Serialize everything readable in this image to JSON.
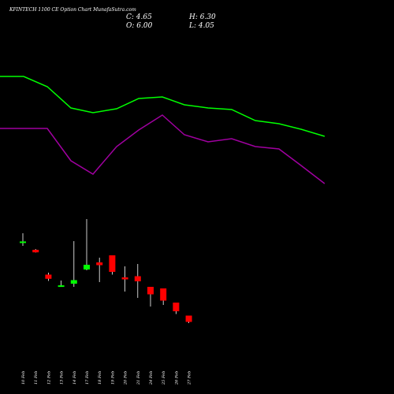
{
  "title": "KFINTECH 1100 CE Option Chart MunafaSutra.com",
  "ohlc": {
    "c": "C: 4.65",
    "h": "H: 6.30",
    "o": "O: 6.00",
    "l": "L: 4.05"
  },
  "chart_data": {
    "type": "candlestick",
    "colors": {
      "up": "#00ff00",
      "down": "#ff0000",
      "line_upper": "#00ff00",
      "line_lower": "#a000a0",
      "wick": "#ffffff",
      "background": "#000000"
    },
    "categories": [
      "10 Feb",
      "11 Feb",
      "12 Feb",
      "13 Feb",
      "14 Feb",
      "17 Feb",
      "18 Feb",
      "19 Feb",
      "20 Feb",
      "21 Feb",
      "24 Feb",
      "25 Feb",
      "26 Feb",
      "27 Feb"
    ],
    "candles": [
      {
        "open": 49.7,
        "close": 51.6,
        "high": 62.0,
        "low": 46.0
      },
      {
        "open": 41.0,
        "close": 37.8,
        "high": 42.0,
        "low": 37.5
      },
      {
        "open": 9.5,
        "close": 4.2,
        "high": 12.0,
        "low": 1.5
      },
      {
        "open": -5.0,
        "close": -4.1,
        "high": 2.0,
        "low": -5.5
      },
      {
        "open": -2.0,
        "close": 2.5,
        "high": 52.0,
        "low": -6.0
      },
      {
        "open": 16.0,
        "close": 22.0,
        "high": 80.0,
        "low": 15.0
      },
      {
        "open": 25.0,
        "close": 21.5,
        "high": 31.0,
        "low": 0.0
      },
      {
        "open": 34.0,
        "close": 13.0,
        "high": 34.0,
        "low": 9.5
      },
      {
        "open": 6.0,
        "close": 3.5,
        "high": 20.0,
        "low": -12.0
      },
      {
        "open": 7.5,
        "close": 1.0,
        "high": 23.0,
        "low": -20.0
      },
      {
        "open": -6.0,
        "close": -15.5,
        "high": -6.0,
        "low": -31.0
      },
      {
        "open": -8.0,
        "close": -23.5,
        "high": -8.0,
        "low": -29.0
      },
      {
        "open": -26.0,
        "close": -37.0,
        "high": -26.0,
        "low": -40.5
      },
      {
        "open": -42.5,
        "close": -50.5,
        "high": -42.5,
        "low": -52.0
      }
    ]
  }
}
